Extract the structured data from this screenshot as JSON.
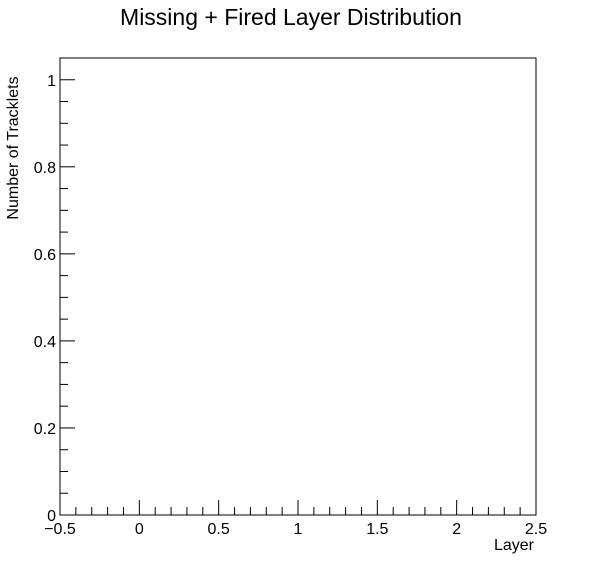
{
  "chart_data": {
    "type": "bar",
    "title": "Missing + Fired Layer Distribution",
    "xlabel": "Layer",
    "ylabel": "Number of Tracklets",
    "xlim": [
      -0.5,
      2.5
    ],
    "ylim": [
      0,
      1.05
    ],
    "x_ticks": [
      "−0.5",
      "0",
      "0.5",
      "1",
      "1.5",
      "2",
      "2.5"
    ],
    "y_ticks": [
      "0",
      "0.2",
      "0.4",
      "0.6",
      "0.8",
      "1"
    ],
    "series": [],
    "grid": false,
    "legend": "none"
  }
}
